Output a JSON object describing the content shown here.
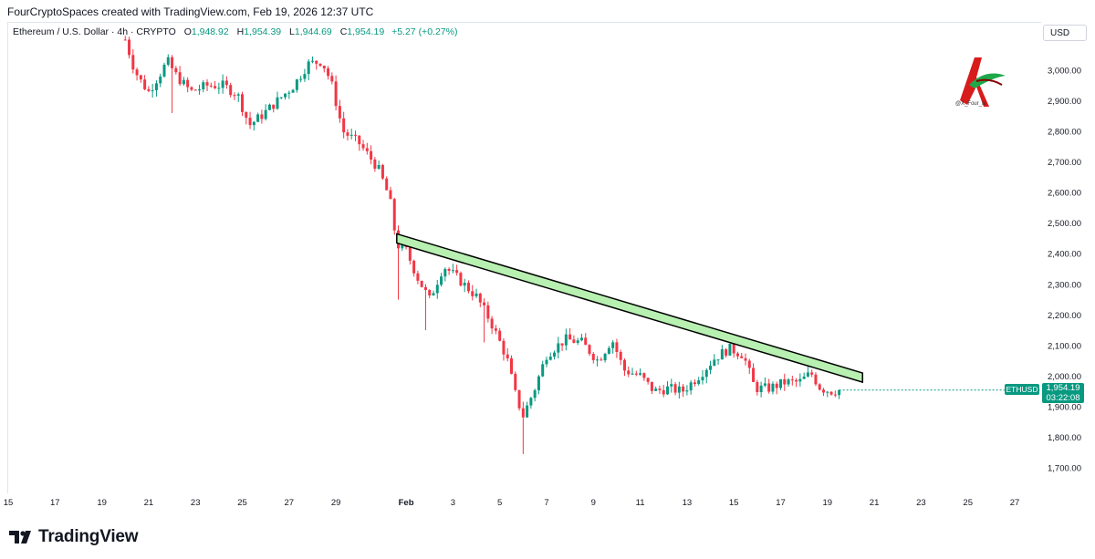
{
  "header": {
    "attribution": "FourCryptoSpaces created with TradingView.com, Feb 19, 2026 12:37 UTC"
  },
  "symbol_bar": {
    "name": "Ethereum / U.S. Dollar · 4h · CRYPTO",
    "open_label": "O",
    "open": "1,948.92",
    "high_label": "H",
    "high": "1,954.39",
    "low_label": "L",
    "low": "1,944.69",
    "close_label": "C",
    "close": "1,954.19",
    "change": "+5.27 (+0.27%)"
  },
  "currency": "USD",
  "price_tag": {
    "symbol": "ETHUSD",
    "price": "1,954.19",
    "countdown": "03:22:08"
  },
  "watermark": {
    "handle": "@X_Four_iv"
  },
  "footer": {
    "brand": "TradingView"
  },
  "colors": {
    "up": "#089981",
    "down": "#f23645",
    "trendline_fill": "#b7f0b1",
    "trendline_stroke": "#000000"
  },
  "chart_data": {
    "type": "candlestick",
    "symbol": "ETHUSD",
    "timeframe": "4h",
    "ylim": [
      1650,
      3100
    ],
    "yticks": [
      1700,
      1800,
      1900,
      2000,
      2100,
      2200,
      2300,
      2400,
      2500,
      2600,
      2700,
      2800,
      2900,
      3000
    ],
    "ytick_labels": [
      "1,700.00",
      "1,800.00",
      "1,900.00",
      "2,000.00",
      "2,100.00",
      "2,200.00",
      "2,300.00",
      "2,400.00",
      "2,500.00",
      "2,600.00",
      "2,700.00",
      "2,800.00",
      "2,900.00",
      "3,000.00"
    ],
    "xlim": [
      15,
      58
    ],
    "xticks": [
      {
        "t": 15,
        "label": "15"
      },
      {
        "t": 17,
        "label": "17"
      },
      {
        "t": 19,
        "label": "19"
      },
      {
        "t": 21,
        "label": "21"
      },
      {
        "t": 23,
        "label": "23"
      },
      {
        "t": 25,
        "label": "25"
      },
      {
        "t": 27,
        "label": "27"
      },
      {
        "t": 29,
        "label": "29"
      },
      {
        "t": 32,
        "label": "Feb"
      },
      {
        "t": 34,
        "label": "3"
      },
      {
        "t": 36,
        "label": "5"
      },
      {
        "t": 38,
        "label": "7"
      },
      {
        "t": 40,
        "label": "9"
      },
      {
        "t": 42,
        "label": "11"
      },
      {
        "t": 44,
        "label": "13"
      },
      {
        "t": 46,
        "label": "15"
      },
      {
        "t": 48,
        "label": "17"
      },
      {
        "t": 50,
        "label": "19"
      },
      {
        "t": 52,
        "label": "21"
      },
      {
        "t": 54,
        "label": "23"
      },
      {
        "t": 56,
        "label": "25"
      },
      {
        "t": 58,
        "label": "27"
      }
    ],
    "anchors": [
      {
        "t": 20.0,
        "p": 3100
      },
      {
        "t": 20.4,
        "p": 3000
      },
      {
        "t": 20.7,
        "p": 2960
      },
      {
        "t": 21.0,
        "p": 2930
      },
      {
        "t": 21.5,
        "p": 2990
      },
      {
        "t": 21.8,
        "p": 3030
      },
      {
        "t": 22.2,
        "p": 2980
      },
      {
        "t": 22.8,
        "p": 2930
      },
      {
        "t": 23.5,
        "p": 2950
      },
      {
        "t": 24.2,
        "p": 2950
      },
      {
        "t": 24.8,
        "p": 2920
      },
      {
        "t": 25.3,
        "p": 2820
      },
      {
        "t": 25.8,
        "p": 2850
      },
      {
        "t": 26.5,
        "p": 2900
      },
      {
        "t": 27.2,
        "p": 2950
      },
      {
        "t": 27.8,
        "p": 3020
      },
      {
        "t": 28.4,
        "p": 3030
      },
      {
        "t": 28.8,
        "p": 2960
      },
      {
        "t": 29.3,
        "p": 2800
      },
      {
        "t": 30.0,
        "p": 2760
      },
      {
        "t": 30.8,
        "p": 2680
      },
      {
        "t": 31.3,
        "p": 2580
      },
      {
        "t": 31.6,
        "p": 2430
      },
      {
        "t": 32.0,
        "p": 2410
      },
      {
        "t": 32.5,
        "p": 2320
      },
      {
        "t": 33.0,
        "p": 2250
      },
      {
        "t": 33.6,
        "p": 2360
      },
      {
        "t": 34.2,
        "p": 2320
      },
      {
        "t": 35.0,
        "p": 2260
      },
      {
        "t": 35.6,
        "p": 2180
      },
      {
        "t": 36.3,
        "p": 2060
      },
      {
        "t": 36.7,
        "p": 1930
      },
      {
        "t": 37.0,
        "p": 1870
      },
      {
        "t": 37.5,
        "p": 1960
      },
      {
        "t": 38.0,
        "p": 2070
      },
      {
        "t": 38.8,
        "p": 2120
      },
      {
        "t": 39.5,
        "p": 2110
      },
      {
        "t": 40.2,
        "p": 2050
      },
      {
        "t": 40.8,
        "p": 2120
      },
      {
        "t": 41.3,
        "p": 2020
      },
      {
        "t": 42.0,
        "p": 2000
      },
      {
        "t": 42.6,
        "p": 1950
      },
      {
        "t": 43.2,
        "p": 1960
      },
      {
        "t": 43.8,
        "p": 1950
      },
      {
        "t": 44.5,
        "p": 2000
      },
      {
        "t": 45.2,
        "p": 2060
      },
      {
        "t": 45.8,
        "p": 2090
      },
      {
        "t": 46.4,
        "p": 2070
      },
      {
        "t": 46.9,
        "p": 1960
      },
      {
        "t": 47.5,
        "p": 1960
      },
      {
        "t": 48.2,
        "p": 1980
      },
      {
        "t": 48.8,
        "p": 1980
      },
      {
        "t": 49.3,
        "p": 2010
      },
      {
        "t": 49.7,
        "p": 1960
      },
      {
        "t": 50.2,
        "p": 1950
      },
      {
        "t": 50.5,
        "p": 1954
      }
    ],
    "trendline": {
      "start": {
        "t": 31.6,
        "p": 2450
      },
      "end": {
        "t": 51.5,
        "p": 1995
      },
      "band_width_price": 30
    },
    "last_price": 1954.19
  }
}
